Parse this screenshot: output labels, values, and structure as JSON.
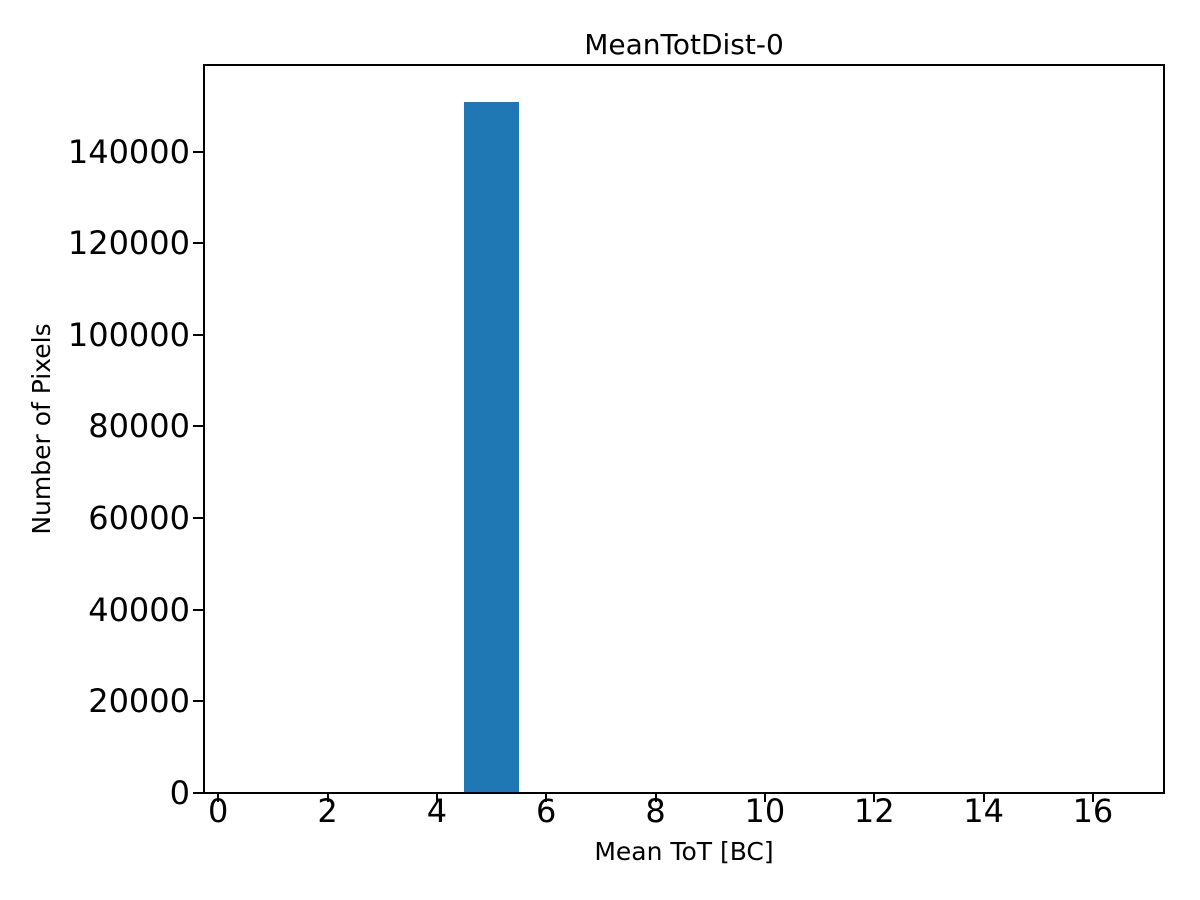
{
  "chart_data": {
    "type": "bar",
    "title": "MeanTotDist-0",
    "xlabel": "Mean ToT [BC]",
    "ylabel": "Number of Pixels",
    "bars": [
      {
        "x0": 4.5,
        "x1": 5.5,
        "value": 150900
      }
    ],
    "xticks": [
      0,
      2,
      4,
      6,
      8,
      10,
      12,
      14,
      16
    ],
    "yticks": [
      0,
      20000,
      40000,
      60000,
      80000,
      100000,
      120000,
      140000
    ],
    "xlim": [
      -0.26,
      17.3
    ],
    "ylim": [
      0,
      158900
    ],
    "bar_color": "#1f77b4",
    "axis_color": "#000000",
    "background_color": "#ffffff",
    "grid": false,
    "legend": null
  }
}
